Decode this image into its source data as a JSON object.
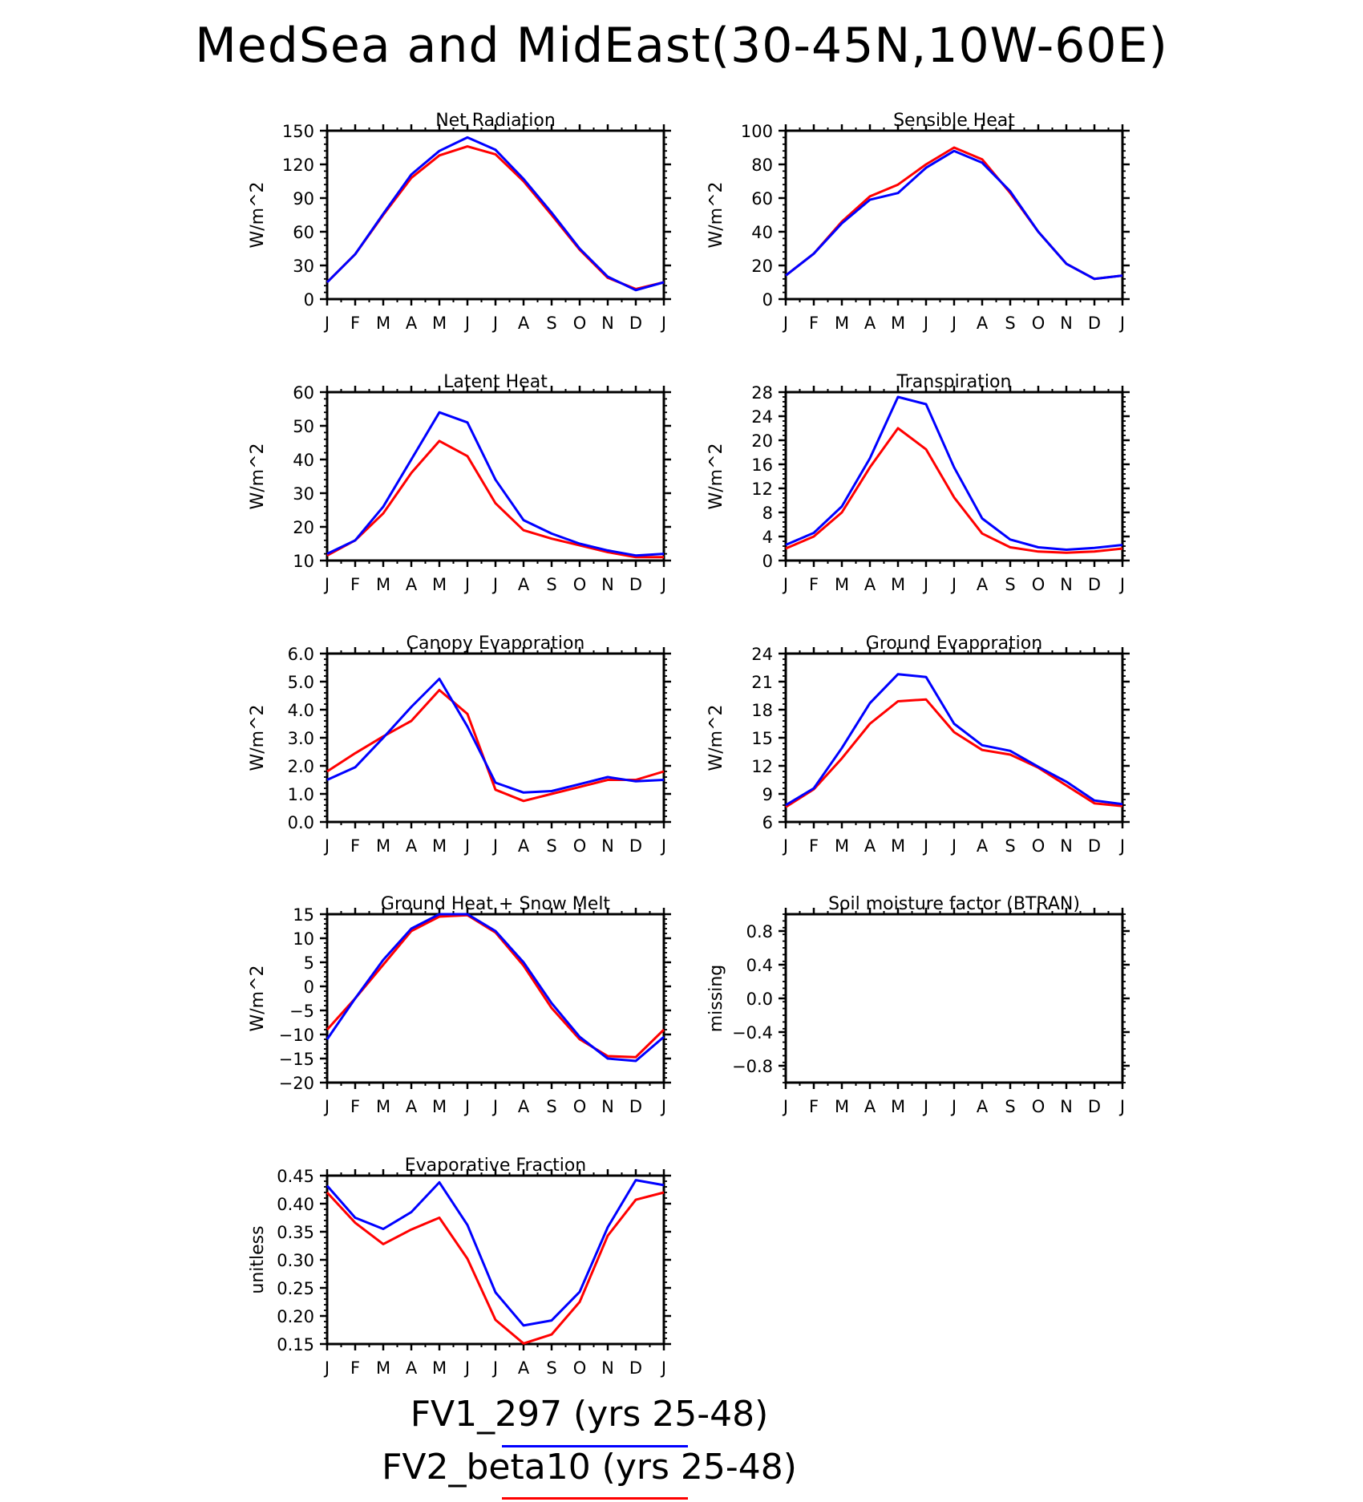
{
  "figure": {
    "title": "MedSea and MidEast(30-45N,10W-60E)"
  },
  "legend": [
    {
      "label": "FV1_297 (yrs 25-48)",
      "color": "#0000ff"
    },
    {
      "label": "FV2_beta10 (yrs 25-48)",
      "color": "#ff0000"
    }
  ],
  "chart_data": [
    {
      "type": "line",
      "title": "Net Radiation",
      "ylabel": "W/m^2",
      "categories": [
        "J",
        "F",
        "M",
        "A",
        "M",
        "J",
        "J",
        "A",
        "S",
        "O",
        "N",
        "D",
        "J"
      ],
      "ylim": [
        0,
        150
      ],
      "yticks": [
        "0",
        "30",
        "60",
        "90",
        "120",
        "150"
      ],
      "grid": false,
      "series": [
        {
          "name": "FV1_297 (yrs 25-48)",
          "color": "#0000ff",
          "values": [
            15,
            40,
            76,
            111,
            132,
            144,
            133,
            107,
            77,
            45,
            20,
            8,
            15
          ]
        },
        {
          "name": "FV2_beta10 (yrs 25-48)",
          "color": "#ff0000",
          "values": [
            15,
            40,
            75,
            108,
            128,
            136,
            129,
            105,
            75,
            44,
            19,
            9,
            15
          ]
        }
      ]
    },
    {
      "type": "line",
      "title": "Sensible Heat",
      "ylabel": "W/m^2",
      "categories": [
        "J",
        "F",
        "M",
        "A",
        "M",
        "J",
        "J",
        "A",
        "S",
        "O",
        "N",
        "D",
        "J"
      ],
      "ylim": [
        0,
        100
      ],
      "yticks": [
        "0",
        "20",
        "40",
        "60",
        "80",
        "100"
      ],
      "grid": false,
      "series": [
        {
          "name": "FV1_297 (yrs 25-48)",
          "color": "#0000ff",
          "values": [
            14,
            27,
            45,
            59,
            63,
            78,
            88,
            81,
            64,
            40,
            21,
            12,
            14
          ]
        },
        {
          "name": "FV2_beta10 (yrs 25-48)",
          "color": "#ff0000",
          "values": [
            14,
            27,
            46,
            61,
            68,
            80,
            90,
            83,
            63,
            40,
            21,
            12,
            14
          ]
        }
      ]
    },
    {
      "type": "line",
      "title": "Latent Heat",
      "ylabel": "W/m^2",
      "categories": [
        "J",
        "F",
        "M",
        "A",
        "M",
        "J",
        "J",
        "A",
        "S",
        "O",
        "N",
        "D",
        "J"
      ],
      "ylim": [
        10,
        60
      ],
      "yticks": [
        "10",
        "20",
        "30",
        "40",
        "50",
        "60"
      ],
      "grid": false,
      "series": [
        {
          "name": "FV1_297 (yrs 25-48)",
          "color": "#0000ff",
          "values": [
            12,
            16,
            26,
            40,
            54,
            51,
            34,
            22,
            18,
            15,
            13,
            11.5,
            12
          ]
        },
        {
          "name": "FV2_beta10 (yrs 25-48)",
          "color": "#ff0000",
          "values": [
            11.5,
            16,
            24,
            36,
            45.5,
            41,
            27,
            19,
            16.5,
            14.5,
            12.5,
            11,
            11
          ]
        }
      ]
    },
    {
      "type": "line",
      "title": "Transpiration",
      "ylabel": "W/m^2",
      "categories": [
        "J",
        "F",
        "M",
        "A",
        "M",
        "J",
        "J",
        "A",
        "S",
        "O",
        "N",
        "D",
        "J"
      ],
      "ylim": [
        0,
        28
      ],
      "yticks": [
        "0",
        "4",
        "8",
        "12",
        "16",
        "20",
        "24",
        "28"
      ],
      "grid": false,
      "series": [
        {
          "name": "FV1_297 (yrs 25-48)",
          "color": "#0000ff",
          "values": [
            2.6,
            4.6,
            9,
            17,
            27.2,
            26,
            15.5,
            7,
            3.5,
            2.2,
            1.8,
            2.1,
            2.6
          ]
        },
        {
          "name": "FV2_beta10 (yrs 25-48)",
          "color": "#ff0000",
          "values": [
            2,
            4,
            8,
            15.5,
            22,
            18.5,
            10.5,
            4.5,
            2.2,
            1.5,
            1.3,
            1.5,
            2
          ]
        }
      ]
    },
    {
      "type": "line",
      "title": "Canopy Evaporation",
      "ylabel": "W/m^2",
      "categories": [
        "J",
        "F",
        "M",
        "A",
        "M",
        "J",
        "J",
        "A",
        "S",
        "O",
        "N",
        "D",
        "J"
      ],
      "ylim": [
        0,
        6
      ],
      "yticks": [
        "0.0",
        "1.0",
        "2.0",
        "3.0",
        "4.0",
        "5.0",
        "6.0"
      ],
      "grid": false,
      "series": [
        {
          "name": "FV1_297 (yrs 25-48)",
          "color": "#0000ff",
          "values": [
            1.5,
            1.95,
            3.0,
            4.1,
            5.1,
            3.4,
            1.4,
            1.05,
            1.1,
            1.35,
            1.6,
            1.45,
            1.5
          ]
        },
        {
          "name": "FV2_beta10 (yrs 25-48)",
          "color": "#ff0000",
          "values": [
            1.8,
            2.45,
            3.05,
            3.6,
            4.7,
            3.85,
            1.15,
            0.75,
            1.0,
            1.25,
            1.5,
            1.5,
            1.8
          ]
        }
      ]
    },
    {
      "type": "line",
      "title": "Ground Evaporation",
      "ylabel": "W/m^2",
      "categories": [
        "J",
        "F",
        "M",
        "A",
        "M",
        "J",
        "J",
        "A",
        "S",
        "O",
        "N",
        "D",
        "J"
      ],
      "ylim": [
        6,
        24
      ],
      "yticks": [
        "6",
        "9",
        "12",
        "15",
        "18",
        "21",
        "24"
      ],
      "grid": false,
      "series": [
        {
          "name": "FV1_297 (yrs 25-48)",
          "color": "#0000ff",
          "values": [
            7.8,
            9.6,
            13.9,
            18.7,
            21.8,
            21.5,
            16.5,
            14.2,
            13.6,
            11.9,
            10.3,
            8.3,
            7.9
          ]
        },
        {
          "name": "FV2_beta10 (yrs 25-48)",
          "color": "#ff0000",
          "values": [
            7.6,
            9.5,
            12.8,
            16.5,
            18.9,
            19.1,
            15.6,
            13.7,
            13.2,
            11.8,
            9.9,
            8.0,
            7.7
          ]
        }
      ]
    },
    {
      "type": "line",
      "title": "Ground Heat + Snow Melt",
      "ylabel": "W/m^2",
      "categories": [
        "J",
        "F",
        "M",
        "A",
        "M",
        "J",
        "J",
        "A",
        "S",
        "O",
        "N",
        "D",
        "J"
      ],
      "ylim": [
        -20,
        15
      ],
      "yticks": [
        "-20",
        "-15",
        "-10",
        "-5",
        "0",
        "5",
        "10",
        "15"
      ],
      "grid": false,
      "series": [
        {
          "name": "FV1_297 (yrs 25-48)",
          "color": "#0000ff",
          "values": [
            -11,
            -2.5,
            5.5,
            12,
            15,
            15,
            11.5,
            5,
            -3.5,
            -10.5,
            -15,
            -15.5,
            -10.5
          ]
        },
        {
          "name": "FV2_beta10 (yrs 25-48)",
          "color": "#ff0000",
          "values": [
            -9,
            -2.5,
            4.5,
            11.5,
            14.5,
            14.8,
            11.2,
            4.3,
            -4.5,
            -11,
            -14.5,
            -14.7,
            -9
          ]
        }
      ]
    },
    {
      "type": "line",
      "title": "Soil moisture factor (BTRAN)",
      "ylabel": "missing",
      "categories": [
        "J",
        "F",
        "M",
        "A",
        "M",
        "J",
        "J",
        "A",
        "S",
        "O",
        "N",
        "D",
        "J"
      ],
      "ylim": [
        -1,
        1
      ],
      "yticks": [
        "-0.8",
        "-0.4",
        "0.0",
        "0.4",
        "0.8"
      ],
      "grid": false,
      "series": []
    },
    {
      "type": "line",
      "title": "Evaporative Fraction",
      "ylabel": "unitless",
      "categories": [
        "J",
        "F",
        "M",
        "A",
        "M",
        "J",
        "J",
        "A",
        "S",
        "O",
        "N",
        "D",
        "J"
      ],
      "ylim": [
        0.15,
        0.45
      ],
      "yticks": [
        "0.15",
        "0.20",
        "0.25",
        "0.30",
        "0.35",
        "0.40",
        "0.45"
      ],
      "grid": false,
      "series": [
        {
          "name": "FV1_297 (yrs 25-48)",
          "color": "#0000ff",
          "values": [
            0.432,
            0.375,
            0.355,
            0.385,
            0.438,
            0.362,
            0.242,
            0.183,
            0.192,
            0.243,
            0.358,
            0.442,
            0.433
          ]
        },
        {
          "name": "FV2_beta10 (yrs 25-48)",
          "color": "#ff0000",
          "values": [
            0.42,
            0.366,
            0.328,
            0.354,
            0.375,
            0.302,
            0.193,
            0.151,
            0.167,
            0.225,
            0.343,
            0.407,
            0.42
          ]
        }
      ]
    }
  ]
}
